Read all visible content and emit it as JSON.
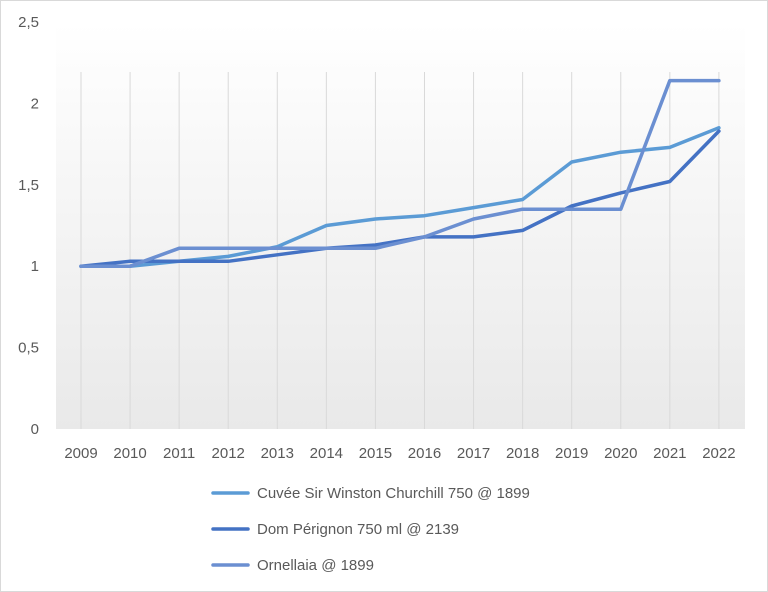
{
  "chart_data": {
    "type": "line",
    "title": "",
    "xlabel": "",
    "ylabel": "",
    "categories": [
      "2009",
      "2010",
      "2011",
      "2012",
      "2013",
      "2014",
      "2015",
      "2016",
      "2017",
      "2018",
      "2019",
      "2020",
      "2021",
      "2022"
    ],
    "ylim": [
      0,
      2.5
    ],
    "yticks": [
      "0",
      "0,5",
      "1",
      "1,5",
      "2",
      "2,5"
    ],
    "ytick_values": [
      0,
      0.5,
      1,
      1.5,
      2,
      2.5
    ],
    "grid": "vertical",
    "legend_position": "bottom",
    "series": [
      {
        "name": "Cuvée Sir Winston Churchill 750 @ 1899",
        "color": "#5b9bd5",
        "values": [
          1.0,
          1.0,
          1.03,
          1.06,
          1.12,
          1.25,
          1.29,
          1.31,
          1.36,
          1.41,
          1.64,
          1.7,
          1.73,
          1.85
        ]
      },
      {
        "name": "Dom Pérignon 750 ml @ 2139",
        "color": "#4472c4",
        "values": [
          1.0,
          1.03,
          1.03,
          1.03,
          1.07,
          1.11,
          1.13,
          1.18,
          1.18,
          1.22,
          1.37,
          1.45,
          1.52,
          1.83
        ]
      },
      {
        "name": "Ornellaia @ 1899",
        "color": "#6b8fd1",
        "values": [
          1.0,
          1.0,
          1.11,
          1.11,
          1.11,
          1.11,
          1.11,
          1.18,
          1.29,
          1.35,
          1.35,
          1.35,
          2.14,
          2.14
        ]
      }
    ]
  }
}
